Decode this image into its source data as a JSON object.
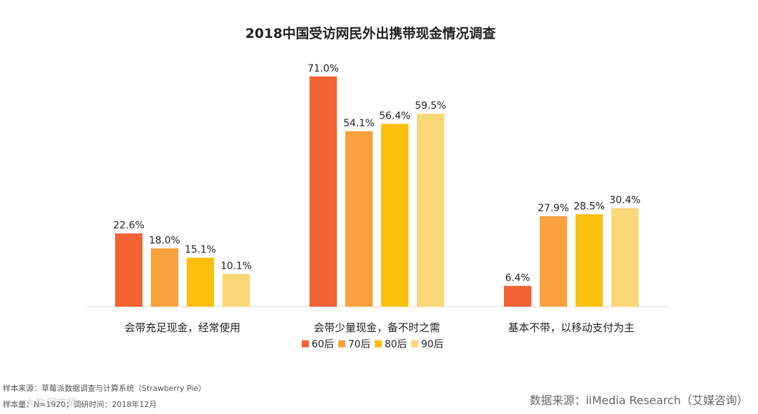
{
  "chart_data": {
    "type": "bar",
    "title": "2018中国受访网民外出携带现金情况调查",
    "categories": [
      "会带充足现金，经常使用",
      "会带少量现金，备不时之需",
      "基本不带，以移动支付为主"
    ],
    "series": [
      {
        "name": "60后",
        "color": "#f26232",
        "values": [
          22.6,
          71.0,
          6.4
        ]
      },
      {
        "name": "70后",
        "color": "#f8a13d",
        "values": [
          18.0,
          54.1,
          27.9
        ]
      },
      {
        "name": "80后",
        "color": "#fbbf0d",
        "values": [
          15.1,
          56.4,
          28.5
        ]
      },
      {
        "name": "90后",
        "color": "#fbd877",
        "values": [
          10.1,
          59.5,
          30.4
        ]
      }
    ],
    "value_suffix": "%",
    "ylim": [
      0,
      75
    ],
    "legend_position": "bottom-center",
    "xlabel": "",
    "ylabel": ""
  },
  "footer": {
    "sample_source": "样本来源：草莓派数据调查与计算系统（Strawberry Pie）",
    "sample_info": "样本量：N=1920；调研时间：2018年12月",
    "data_source": "数据来源：iiMedia Research（艾媒咨询）",
    "watermark": "大数据文摘"
  }
}
